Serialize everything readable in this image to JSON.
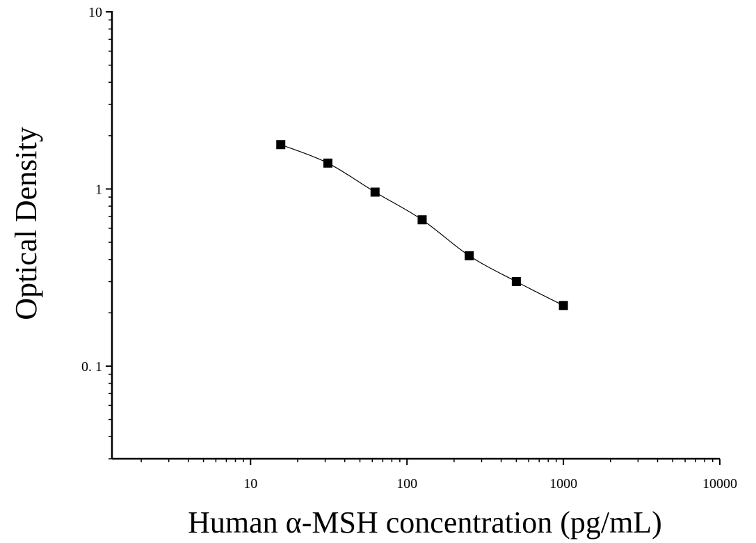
{
  "chart_data": {
    "type": "scatter",
    "title": "",
    "xlabel": "Human α-MSH concentration (pg/mL)",
    "ylabel": "Optical Density",
    "x_scale": "log",
    "y_scale": "log",
    "xlim": [
      1.3,
      10000
    ],
    "ylim": [
      0.03,
      10
    ],
    "x_ticks": [
      {
        "value": 10,
        "label": "10"
      },
      {
        "value": 100,
        "label": "100"
      },
      {
        "value": 1000,
        "label": "1000"
      },
      {
        "value": 10000,
        "label": "10000"
      }
    ],
    "y_ticks": [
      {
        "value": 10,
        "label": "10"
      },
      {
        "value": 1,
        "label": "1"
      },
      {
        "value": 0.1,
        "label": "0. 1"
      }
    ],
    "grid": false,
    "legend": "none",
    "series": [
      {
        "marker": "square",
        "color": "#000000",
        "x": [
          15.6,
          31.2,
          62.5,
          125,
          250,
          500,
          1000
        ],
        "y": [
          1.78,
          1.4,
          0.96,
          0.67,
          0.42,
          0.3,
          0.22
        ]
      }
    ],
    "fit_curve": {
      "style": "smooth",
      "color": "#000000"
    }
  }
}
